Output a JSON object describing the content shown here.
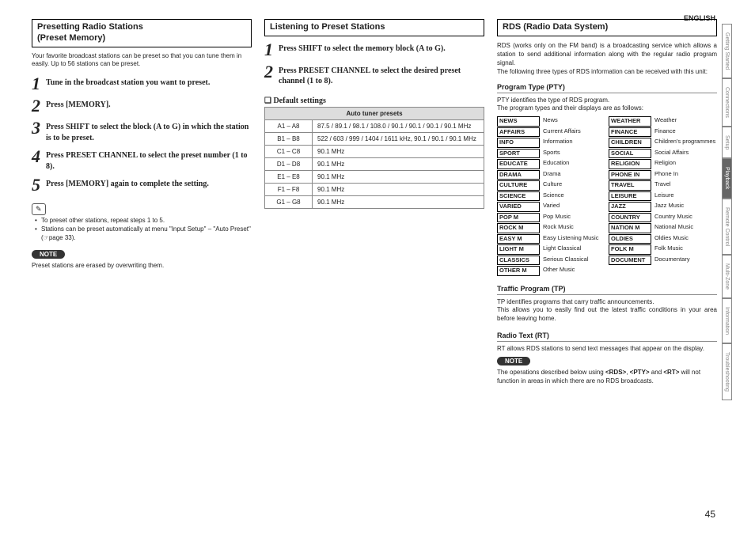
{
  "langLabel": "ENGLISH",
  "pageNumber": "45",
  "sideTabs": [
    {
      "label": "Getting Started",
      "active": false
    },
    {
      "label": "Connections",
      "active": false
    },
    {
      "label": "Setup",
      "active": false
    },
    {
      "label": "Playback",
      "active": true
    },
    {
      "label": "Remote Control",
      "active": false
    },
    {
      "label": "Multi-Zone",
      "active": false
    },
    {
      "label": "Information",
      "active": false
    },
    {
      "label": "Troubleshooting",
      "active": false
    }
  ],
  "col1": {
    "title": "Presetting Radio Stations\n(Preset Memory)",
    "intro": "Your favorite broadcast stations can be preset so that you can tune them in easily. Up to 56 stations can be preset.",
    "steps": [
      "Tune in the broadcast station you want to preset.",
      "Press [MEMORY].",
      "Press SHIFT to select the block (A to G) in which the station is to be preset.",
      "Press PRESET CHANNEL to select the preset number (1 to 8).",
      "Press [MEMORY] again to complete the setting."
    ],
    "bullets": [
      "To preset other stations, repeat steps 1 to 5.",
      "Stations can be preset automatically at menu \"Input Setup\" – \"Auto Preset\" (☞page 33)."
    ],
    "noteLabel": "NOTE",
    "noteText": "Preset stations are erased by overwriting them."
  },
  "col2": {
    "title": "Listening to Preset Stations",
    "steps": [
      "Press SHIFT to select the memory block (A to G).",
      "Press PRESET CHANNEL to select the desired preset channel (1 to 8)."
    ],
    "defaultHeading": "❑ Default settings",
    "tableHeader": "Auto tuner presets",
    "tableRows": [
      [
        "A1 – A8",
        "87.5 / 89.1 / 98.1 / 108.0 / 90.1 / 90.1 / 90.1 / 90.1 MHz"
      ],
      [
        "B1 – B8",
        "522 / 603 / 999 / 1404 / 1611 kHz, 90.1 / 90.1 / 90.1 MHz"
      ],
      [
        "C1 – C8",
        "90.1 MHz"
      ],
      [
        "D1 – D8",
        "90.1 MHz"
      ],
      [
        "E1 – E8",
        "90.1 MHz"
      ],
      [
        "F1 – F8",
        "90.1 MHz"
      ],
      [
        "G1 – G8",
        "90.1 MHz"
      ]
    ]
  },
  "col3": {
    "title": "RDS (Radio Data System)",
    "intro": "RDS (works only on the FM band) is a broadcasting service which allows a station to send additional information along with the regular radio program signal.\nThe following three types of RDS information can be received with this unit:",
    "pty": {
      "heading": "Program Type (PTY)",
      "desc1": "PTY identifies the type of RDS program.",
      "desc2": "The program types and their displays are as follows:",
      "left": [
        [
          "NEWS",
          "News"
        ],
        [
          "AFFAIRS",
          "Current Affairs"
        ],
        [
          "INFO",
          "Information"
        ],
        [
          "SPORT",
          "Sports"
        ],
        [
          "EDUCATE",
          "Education"
        ],
        [
          "DRAMA",
          "Drama"
        ],
        [
          "CULTURE",
          "Culture"
        ],
        [
          "SCIENCE",
          "Science"
        ],
        [
          "VARIED",
          "Varied"
        ],
        [
          "POP M",
          "Pop Music"
        ],
        [
          "ROCK M",
          "Rock Music"
        ],
        [
          "EASY M",
          "Easy Listening Music"
        ],
        [
          "LIGHT M",
          "Light Classical"
        ],
        [
          "CLASSICS",
          "Serious Classical"
        ],
        [
          "OTHER M",
          "Other Music"
        ]
      ],
      "right": [
        [
          "WEATHER",
          "Weather"
        ],
        [
          "FINANCE",
          "Finance"
        ],
        [
          "CHILDREN",
          "Children's programmes"
        ],
        [
          "SOCIAL",
          "Social Affairs"
        ],
        [
          "RELIGION",
          "Religion"
        ],
        [
          "PHONE IN",
          "Phone In"
        ],
        [
          "TRAVEL",
          "Travel"
        ],
        [
          "LEISURE",
          "Leisure"
        ],
        [
          "JAZZ",
          "Jazz Music"
        ],
        [
          "COUNTRY",
          "Country Music"
        ],
        [
          "NATION M",
          "National Music"
        ],
        [
          "OLDIES",
          "Oldies Music"
        ],
        [
          "FOLK M",
          "Folk Music"
        ],
        [
          "DOCUMENT",
          "Documentary"
        ]
      ]
    },
    "tp": {
      "heading": "Traffic Program (TP)",
      "text": "TP identifies programs that carry traffic announcements.\nThis allows you to easily find out the latest traffic conditions in your area before leaving home."
    },
    "rt": {
      "heading": "Radio Text (RT)",
      "text": "RT allows RDS stations to send text messages that appear on the display."
    },
    "noteLabel": "NOTE",
    "noteText": "The operations described below using <RDS>, <PTY> and <RT> will not function in areas in which there are no RDS broadcasts."
  }
}
